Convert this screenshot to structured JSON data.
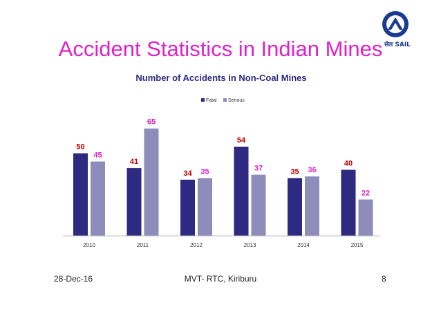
{
  "slide": {
    "title": "Accident Statistics in Indian Mines",
    "logo_text": "सेल SAIL"
  },
  "footer": {
    "date": "28-Dec-16",
    "center": "MVT- RTC, Kiriburu",
    "page": "8"
  },
  "colors": {
    "title": "#e020c8",
    "fatal": "#2e2a82",
    "serious": "#8e8cba",
    "fatal_label": "#c00000",
    "serious_label": "#e020c8"
  },
  "chart_data": {
    "type": "bar",
    "title": "Number of Accidents in Non-Coal Mines",
    "xlabel": "",
    "ylabel": "",
    "categories": [
      "2010",
      "2011",
      "2012",
      "2013",
      "2014",
      "2015"
    ],
    "series": [
      {
        "name": "Fatal",
        "values": [
          50,
          41,
          34,
          54,
          35,
          40
        ],
        "color": "#2e2a82",
        "label_color": "#c00000"
      },
      {
        "name": "Serious",
        "values": [
          45,
          65,
          35,
          37,
          36,
          22
        ],
        "color": "#8e8cba",
        "label_color": "#e020c8"
      }
    ],
    "ylim": [
      0,
      70
    ],
    "grid": false,
    "legend": "top-center"
  }
}
